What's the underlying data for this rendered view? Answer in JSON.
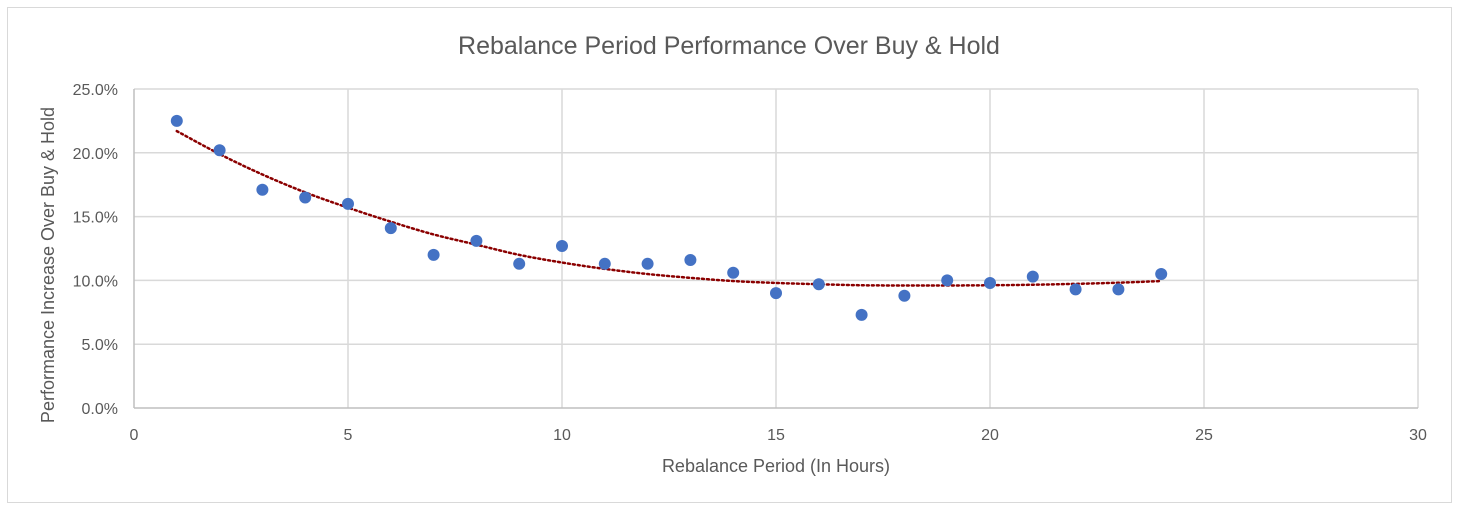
{
  "chart_data": {
    "type": "scatter",
    "title": "Rebalance Period Performance Over Buy & Hold",
    "xlabel": "Rebalance Period (In Hours)",
    "ylabel": "Performance Increase Over Buy & Hold",
    "xlim": [
      0,
      30
    ],
    "ylim": [
      0.0,
      25.0
    ],
    "x_ticks": [
      0,
      5,
      10,
      15,
      20,
      25,
      30
    ],
    "x_tick_labels": [
      "0",
      "5",
      "10",
      "15",
      "20",
      "25",
      "30"
    ],
    "y_ticks": [
      0,
      5,
      10,
      15,
      20,
      25
    ],
    "y_tick_labels": [
      "0.0%",
      "5.0%",
      "10.0%",
      "15.0%",
      "20.0%",
      "25.0%"
    ],
    "grid": true,
    "legend": "none",
    "series": [
      {
        "name": "Performance",
        "color": "#4472c4",
        "x": [
          1,
          2,
          3,
          4,
          5,
          6,
          7,
          8,
          9,
          10,
          11,
          12,
          13,
          14,
          15,
          16,
          17,
          18,
          19,
          20,
          21,
          22,
          23,
          24
        ],
        "y": [
          22.5,
          20.2,
          17.1,
          16.5,
          16.0,
          14.1,
          12.0,
          13.1,
          11.3,
          12.7,
          11.3,
          11.3,
          11.6,
          10.6,
          9.0,
          9.7,
          7.3,
          8.8,
          10.0,
          9.8,
          10.3,
          9.3,
          9.3,
          10.5
        ]
      }
    ],
    "trendline": {
      "type": "polynomial",
      "style": "dotted",
      "color": "#8b0000",
      "x": [
        1,
        2,
        3,
        4,
        5,
        6,
        7,
        8,
        9,
        10,
        11,
        12,
        13,
        14,
        15,
        16,
        17,
        18,
        19,
        20,
        21,
        22,
        23,
        24
      ],
      "y": [
        21.7,
        19.9,
        18.3,
        16.9,
        15.7,
        14.6,
        13.6,
        12.8,
        12.0,
        11.4,
        10.9,
        10.5,
        10.2,
        9.95,
        9.8,
        9.7,
        9.62,
        9.6,
        9.6,
        9.62,
        9.66,
        9.73,
        9.82,
        9.95
      ]
    }
  }
}
